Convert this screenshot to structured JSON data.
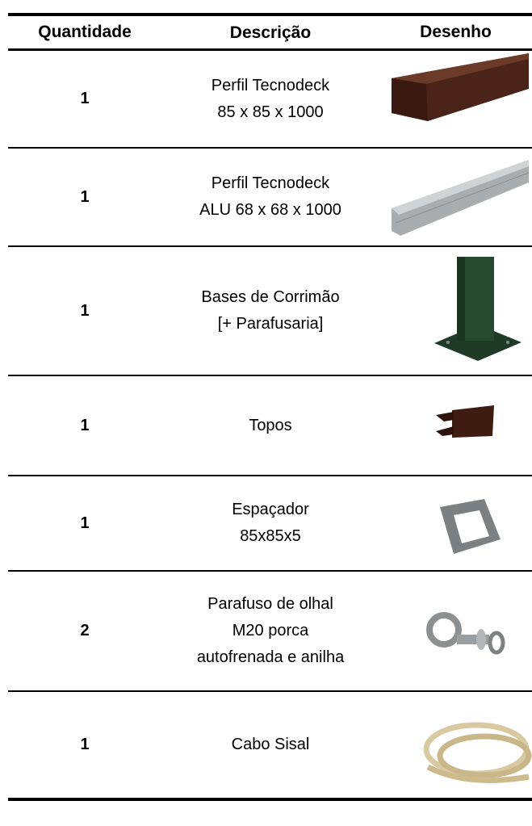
{
  "table": {
    "columns": [
      "Quantidade",
      "Descrição",
      "Desenho"
    ],
    "rows": [
      {
        "quantity": 1,
        "description": [
          "Perfil Tecnodeck",
          "85 x 85 x 1000"
        ]
      },
      {
        "quantity": 1,
        "description": [
          "Perfil Tecnodeck",
          "ALU 68 x 68 x 1000"
        ]
      },
      {
        "quantity": 1,
        "description": [
          "Bases de Corrimão",
          "[+ Parafusaria]"
        ]
      },
      {
        "quantity": 1,
        "description": [
          "Topos"
        ]
      },
      {
        "quantity": 1,
        "description": [
          "Espaçador",
          "85x85x5"
        ]
      },
      {
        "quantity": 2,
        "description": [
          "Parafuso de olhal",
          "M20 porca",
          "autofrenada e anilha"
        ]
      },
      {
        "quantity": 1,
        "description": [
          "Cabo Sisal"
        ]
      }
    ]
  }
}
